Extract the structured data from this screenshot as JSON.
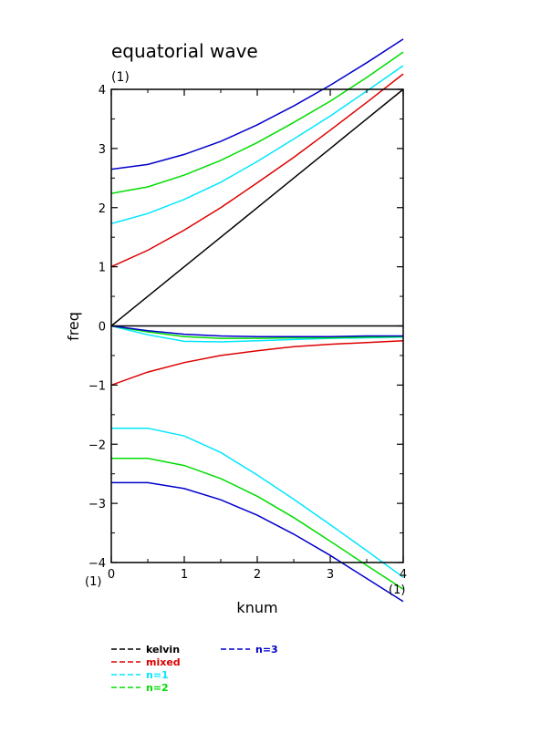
{
  "chart_data": {
    "type": "line",
    "title": "equatorial wave",
    "subtitle": "(1)",
    "xlabel": "knum",
    "ylabel": "freq",
    "x_corner_label": "(1)",
    "y_corner_label": "(1)",
    "xlim": [
      0,
      4
    ],
    "ylim": [
      -4,
      4
    ],
    "x_ticks": [
      "0",
      "1",
      "2",
      "3",
      "4"
    ],
    "y_ticks": [
      "−4",
      "−3",
      "−2",
      "−1",
      "0",
      "1",
      "2",
      "3",
      "4"
    ],
    "grid": false,
    "legend_position": "below plot",
    "series": [
      {
        "name": "kelvin",
        "color": "#000000",
        "points": [
          [
            0,
            0
          ],
          [
            0.5,
            0.5
          ],
          [
            1,
            1
          ],
          [
            1.5,
            1.5
          ],
          [
            2,
            2
          ],
          [
            2.5,
            2.5
          ],
          [
            3,
            3
          ],
          [
            3.5,
            3.5
          ],
          [
            4,
            4
          ]
        ]
      },
      {
        "name": "kelvin",
        "color": "#000000",
        "legend": false,
        "points": [
          [
            0,
            0
          ],
          [
            4,
            0
          ]
        ]
      },
      {
        "name": "mixed",
        "color": "#dd0000",
        "points": [
          [
            0,
            1
          ],
          [
            0.5,
            1.28
          ],
          [
            1,
            1.62
          ],
          [
            1.5,
            2.0
          ],
          [
            2,
            2.42
          ],
          [
            2.5,
            2.85
          ],
          [
            3,
            3.31
          ],
          [
            3.5,
            3.78
          ],
          [
            4,
            4.26
          ]
        ]
      },
      {
        "name": "mixed",
        "color": "#dd0000",
        "legend": false,
        "points": [
          [
            0,
            -1
          ],
          [
            0.5,
            -0.78
          ],
          [
            1,
            -0.62
          ],
          [
            1.5,
            -0.5
          ],
          [
            2,
            -0.42
          ],
          [
            2.5,
            -0.35
          ],
          [
            3,
            -0.31
          ],
          [
            3.5,
            -0.28
          ],
          [
            4,
            -0.25
          ]
        ]
      },
      {
        "name": "n=1",
        "color": "#00e6ff",
        "points": [
          [
            0,
            1.73
          ],
          [
            0.5,
            1.9
          ],
          [
            1,
            2.14
          ],
          [
            1.5,
            2.43
          ],
          [
            2,
            2.78
          ],
          [
            2.5,
            3.16
          ],
          [
            3,
            3.55
          ],
          [
            3.5,
            3.97
          ],
          [
            4,
            4.4
          ]
        ]
      },
      {
        "name": "n=1",
        "color": "#00e6ff",
        "legend": false,
        "points": [
          [
            0,
            0
          ],
          [
            0.5,
            -0.15
          ],
          [
            1,
            -0.26
          ],
          [
            1.5,
            -0.27
          ],
          [
            2,
            -0.25
          ],
          [
            2.5,
            -0.23
          ],
          [
            3,
            -0.21
          ],
          [
            3.5,
            -0.2
          ],
          [
            4,
            -0.19
          ]
        ]
      },
      {
        "name": "n=1",
        "color": "#00e6ff",
        "legend": false,
        "points": [
          [
            0,
            -1.73
          ],
          [
            0.5,
            -1.73
          ],
          [
            1,
            -1.86
          ],
          [
            1.5,
            -2.14
          ],
          [
            2,
            -2.52
          ],
          [
            2.5,
            -2.93
          ],
          [
            3,
            -3.36
          ],
          [
            3.5,
            -3.8
          ],
          [
            4,
            -4.25
          ]
        ]
      },
      {
        "name": "n=2",
        "color": "#00dd00",
        "points": [
          [
            0,
            2.24
          ],
          [
            0.5,
            2.35
          ],
          [
            1,
            2.55
          ],
          [
            1.5,
            2.8
          ],
          [
            2,
            3.1
          ],
          [
            2.5,
            3.44
          ],
          [
            3,
            3.8
          ],
          [
            3.5,
            4.2
          ],
          [
            4,
            4.63
          ]
        ]
      },
      {
        "name": "n=2",
        "color": "#00dd00",
        "legend": false,
        "points": [
          [
            0,
            0
          ],
          [
            0.5,
            -0.1
          ],
          [
            1,
            -0.18
          ],
          [
            1.5,
            -0.21
          ],
          [
            2,
            -0.21
          ],
          [
            2.5,
            -0.2
          ],
          [
            3,
            -0.2
          ],
          [
            3.5,
            -0.19
          ],
          [
            4,
            -0.18
          ]
        ]
      },
      {
        "name": "n=2",
        "color": "#00dd00",
        "legend": false,
        "points": [
          [
            0,
            -2.24
          ],
          [
            0.5,
            -2.24
          ],
          [
            1,
            -2.36
          ],
          [
            1.5,
            -2.58
          ],
          [
            2,
            -2.88
          ],
          [
            2.5,
            -3.24
          ],
          [
            3,
            -3.64
          ],
          [
            3.5,
            -4.05
          ],
          [
            4,
            -4.45
          ]
        ]
      },
      {
        "name": "n=3",
        "color": "#0000cc",
        "points": [
          [
            0,
            2.65
          ],
          [
            0.5,
            2.73
          ],
          [
            1,
            2.9
          ],
          [
            1.5,
            3.12
          ],
          [
            2,
            3.4
          ],
          [
            2.5,
            3.72
          ],
          [
            3,
            4.07
          ],
          [
            3.5,
            4.45
          ],
          [
            4,
            4.85
          ]
        ]
      },
      {
        "name": "n=3",
        "color": "#0000cc",
        "legend": false,
        "points": [
          [
            0,
            0
          ],
          [
            0.5,
            -0.08
          ],
          [
            1,
            -0.14
          ],
          [
            1.5,
            -0.17
          ],
          [
            2,
            -0.18
          ],
          [
            2.5,
            -0.18
          ],
          [
            3,
            -0.18
          ],
          [
            3.5,
            -0.17
          ],
          [
            4,
            -0.17
          ]
        ]
      },
      {
        "name": "n=3",
        "color": "#0000cc",
        "legend": false,
        "points": [
          [
            0,
            -2.65
          ],
          [
            0.5,
            -2.65
          ],
          [
            1,
            -2.75
          ],
          [
            1.5,
            -2.94
          ],
          [
            2,
            -3.2
          ],
          [
            2.5,
            -3.52
          ],
          [
            3,
            -3.88
          ],
          [
            3.5,
            -4.27
          ],
          [
            4,
            -4.66
          ]
        ]
      }
    ],
    "legend": [
      {
        "label": "kelvin",
        "color": "#000000"
      },
      {
        "label": "mixed",
        "color": "#dd0000"
      },
      {
        "label": "n=1",
        "color": "#00e6ff"
      },
      {
        "label": "n=2",
        "color": "#00dd00"
      },
      {
        "label": "n=3",
        "color": "#0000cc"
      }
    ]
  }
}
